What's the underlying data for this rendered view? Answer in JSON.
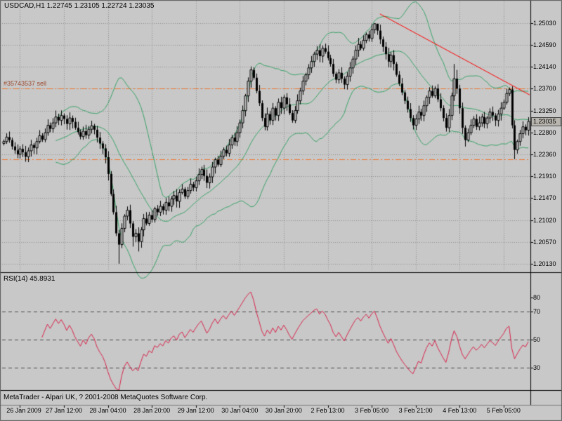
{
  "header": {
    "title": "USDCAD,H1 1.22745 1.23105 1.22724 1.23035"
  },
  "footer": {
    "copyright": "MetaTrader - Alpari UK, ? 2001-2008 MetaQuotes Software Corp."
  },
  "colors": {
    "background": "#c8c8c8",
    "grid": "#909090",
    "candle": "#000000",
    "bollinger": "#3aa368",
    "rsi_line": "#d8234a",
    "trendline": "#ff0000",
    "order_line": "#ee7733",
    "order_label_text": "#9a4a30",
    "level_line": "#4a4a4a",
    "panel_border": "#000000",
    "price_tag_bg": "#b8b5ae",
    "text": "#000000"
  },
  "chart_data": [
    {
      "type": "candlestick",
      "symbol": "USDCAD",
      "timeframe": "H1",
      "ohlc_display": {
        "open": "1.22745",
        "high": "1.23105",
        "low": "1.22724",
        "close": "1.23035"
      },
      "current_price": 1.23035,
      "y_axis": {
        "tick_labels": [
          "1.25030",
          "1.24590",
          "1.24140",
          "1.23700",
          "1.23250",
          "1.22800",
          "1.22360",
          "1.21910",
          "1.21470",
          "1.21020",
          "1.20570",
          "1.20130"
        ],
        "tick_values": [
          1.2503,
          1.2459,
          1.2414,
          1.237,
          1.2325,
          1.228,
          1.2236,
          1.2191,
          1.2147,
          1.2102,
          1.2057,
          1.2013
        ],
        "range": [
          1.19985,
          1.25475
        ]
      },
      "x_axis": {
        "tick_labels": [
          "26 Jan 2009",
          "27 Jan 12:00",
          "28 Jan 04:00",
          "28 Jan 20:00",
          "29 Jan 12:00",
          "30 Jan 04:00",
          "30 Jan 20:00",
          "2 Feb 13:00",
          "3 Feb 05:00",
          "3 Feb 21:00",
          "4 Feb 13:00",
          "5 Feb 05:00"
        ],
        "tick_bars": [
          6,
          22,
          38,
          54,
          70,
          86,
          102,
          118,
          134,
          150,
          166,
          182
        ]
      },
      "closes": [
        1.2262,
        1.2271,
        1.2265,
        1.2252,
        1.2244,
        1.2236,
        1.2247,
        1.224,
        1.2231,
        1.2243,
        1.2255,
        1.2249,
        1.2262,
        1.2274,
        1.2266,
        1.228,
        1.2295,
        1.2288,
        1.23,
        1.2312,
        1.2305,
        1.2315,
        1.2308,
        1.2298,
        1.231,
        1.2302,
        1.229,
        1.2281,
        1.2272,
        1.2283,
        1.2275,
        1.2287,
        1.2294,
        1.2286,
        1.227,
        1.2258,
        1.2248,
        1.223,
        1.2196,
        1.2155,
        1.2118,
        1.2075,
        1.2052,
        1.2085,
        1.211,
        1.2122,
        1.2095,
        1.2068,
        1.2075,
        1.2058,
        1.2082,
        1.2105,
        1.2095,
        1.2112,
        1.2103,
        1.2125,
        1.2118,
        1.213,
        1.2122,
        1.2138,
        1.213,
        1.2145,
        1.2152,
        1.214,
        1.2158,
        1.2165,
        1.215,
        1.2162,
        1.2175,
        1.2168,
        1.2182,
        1.2195,
        1.2205,
        1.2192,
        1.2178,
        1.219,
        1.221,
        1.2225,
        1.2215,
        1.2232,
        1.2245,
        1.2238,
        1.2255,
        1.227,
        1.2262,
        1.228,
        1.23,
        1.2325,
        1.2355,
        1.2385,
        1.2408,
        1.2392,
        1.2365,
        1.234,
        1.231,
        1.2292,
        1.2318,
        1.2305,
        1.233,
        1.2315,
        1.2342,
        1.233,
        1.2352,
        1.2338,
        1.232,
        1.2305,
        1.2325,
        1.2345,
        1.2365,
        1.2385,
        1.2398,
        1.2412,
        1.2425,
        1.244,
        1.2448,
        1.2436,
        1.2452,
        1.2445,
        1.2432,
        1.242,
        1.24,
        1.2388,
        1.2402,
        1.239,
        1.2378,
        1.2395,
        1.2412,
        1.243,
        1.2448,
        1.246,
        1.2452,
        1.2468,
        1.248,
        1.2472,
        1.249,
        1.2502,
        1.2488,
        1.247,
        1.2455,
        1.244,
        1.2425,
        1.2438,
        1.242,
        1.2398,
        1.238,
        1.2362,
        1.2345,
        1.2328,
        1.231,
        1.2295,
        1.2308,
        1.2322,
        1.2315,
        1.2335,
        1.2352,
        1.2365,
        1.2355,
        1.237,
        1.2348,
        1.233,
        1.231,
        1.229,
        1.2315,
        1.2355,
        1.239,
        1.237,
        1.233,
        1.229,
        1.2265,
        1.228,
        1.2295,
        1.2308,
        1.2292,
        1.23,
        1.2312,
        1.2298,
        1.231,
        1.2322,
        1.2315,
        1.2305,
        1.2318,
        1.233,
        1.2342,
        1.236,
        1.2368,
        1.2295,
        1.2245,
        1.2262,
        1.2278,
        1.2292,
        1.2285,
        1.2303
      ],
      "wick_highs": {
        "90": 1.2415,
        "135": 1.2503,
        "136": 1.2498,
        "164": 1.242,
        "165": 1.2408,
        "184": 1.2372
      },
      "wick_lows": {
        "42": 1.2013,
        "47": 1.2048,
        "49": 1.2038,
        "186": 1.2226
      },
      "overlays": {
        "bollinger": {
          "period": 20,
          "deviation": 2
        },
        "trendline": {
          "bar1": 137,
          "price1": 1.2522,
          "bar2": 192,
          "price2": 1.2357
        },
        "order_lines": [
          {
            "price": 1.237,
            "label": "#35743537 sell"
          },
          {
            "price": 1.2226,
            "label": ""
          }
        ]
      }
    },
    {
      "type": "line",
      "indicator": "RSI",
      "period": 14,
      "label": "RSI(14) 45.8931",
      "current_value": 45.8931,
      "levels": [
        70,
        50,
        30
      ],
      "y_axis": {
        "tick_labels": [
          "80",
          "70",
          "50",
          "30"
        ],
        "tick_values": [
          80,
          70,
          50,
          30
        ],
        "range": [
          14,
          88
        ]
      }
    }
  ]
}
